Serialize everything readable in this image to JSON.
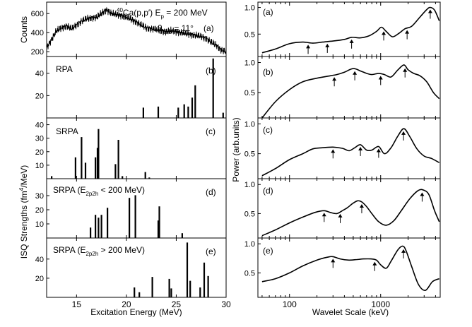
{
  "chart_data": [
    {
      "type": "line",
      "panel": "left-a",
      "ylabel": "Counts",
      "label": "(a)",
      "reaction_prefix": "40",
      "reaction": "Ca(p,p′) E",
      "energy_sub": "p",
      "energy_value": " = 200 MeV",
      "angle_symbol": "θ",
      "angle_sub": "Lab",
      "angle_value": " = 11°",
      "xlim": [
        12,
        30
      ],
      "ylim": [
        150,
        720
      ],
      "yticks": [
        200,
        400,
        600
      ],
      "x": [
        12,
        12.5,
        13,
        13.5,
        14,
        14.5,
        15,
        15.5,
        16,
        16.5,
        17,
        17.5,
        18,
        18.5,
        19,
        19.5,
        20,
        20.5,
        21,
        21.5,
        22,
        22.5,
        23,
        23.5,
        24,
        24.5,
        25,
        25.5,
        26,
        26.5,
        27,
        27.5,
        28,
        28.5,
        29,
        29.5,
        30
      ],
      "y": [
        240,
        330,
        420,
        450,
        470,
        440,
        480,
        520,
        545,
        555,
        560,
        600,
        640,
        600,
        590,
        580,
        560,
        540,
        510,
        480,
        450,
        440,
        430,
        420,
        410,
        420,
        410,
        400,
        390,
        380,
        370,
        360,
        340,
        300,
        270,
        220,
        200
      ]
    },
    {
      "type": "bar",
      "panel": "left-b",
      "label": "(b)",
      "title": "RPA",
      "xlim": [
        12,
        30
      ],
      "ylim": [
        0,
        55
      ],
      "yticks": [
        20,
        40
      ],
      "x": [
        21.7,
        23.2,
        25.2,
        25.8,
        26.2,
        26.6,
        26.9,
        28.7,
        29.7
      ],
      "values": [
        9.2,
        10.2,
        9.2,
        12.2,
        10.2,
        18.2,
        29.2,
        53.2,
        4.7
      ]
    },
    {
      "type": "bar",
      "panel": "left-c",
      "label": "(c)",
      "title": "SRPA",
      "xlim": [
        12,
        30
      ],
      "ylim": [
        0,
        45
      ],
      "yticks": [
        10,
        20,
        30,
        40
      ],
      "x": [
        12.5,
        14.9,
        15.5,
        15.9,
        16.9,
        17.1,
        17.2,
        18.9,
        19.2,
        19.6,
        21.9,
        22.3
      ],
      "values": [
        1.9,
        15.8,
        30.8,
        11.8,
        15.8,
        22.8,
        36.8,
        10.8,
        28.8,
        1.9,
        4.9,
        0.9
      ]
    },
    {
      "type": "bar",
      "panel": "left-d",
      "label": "(d)",
      "title": "SRPA (E",
      "title_sub": "2p2h",
      "title_rest": " < 200 MeV)",
      "xlim": [
        12,
        30
      ],
      "ylim": [
        0,
        42
      ],
      "yticks": [
        10,
        20,
        30
      ],
      "x": [
        16.4,
        16.9,
        17.2,
        17.5,
        18.1,
        20.3,
        20.9,
        23.2,
        23.3,
        25.6
      ],
      "values": [
        7.4,
        16.4,
        14.4,
        16.4,
        21.4,
        28.4,
        30.3,
        12.4,
        22.4,
        3.4
      ]
    },
    {
      "type": "bar",
      "panel": "left-e",
      "label": "(e)",
      "title": "SRPA (E",
      "title_sub": "2p2h",
      "title_rest": " > 200 MeV)",
      "xlim": [
        12,
        30
      ],
      "ylim": [
        0,
        62
      ],
      "yticks": [
        20,
        40
      ],
      "xlabel": "Excitation Energy (MeV)",
      "xticks": [
        15,
        20,
        25,
        30
      ],
      "x": [
        20.8,
        21.3,
        22.6,
        24.3,
        24.5,
        26.1,
        26.4,
        27.4,
        27.8,
        28.2
      ],
      "values": [
        10.3,
        5.3,
        21.3,
        19.3,
        9.3,
        57.3,
        17.3,
        10.3,
        36.3,
        22.3
      ]
    },
    {
      "type": "line",
      "panel": "right-a",
      "label": "(a)",
      "xscale": "log",
      "xlim": [
        45,
        4500
      ],
      "ylim": [
        0.08,
        1.1
      ],
      "yticks": [
        0.5,
        1.0
      ],
      "x": [
        50,
        70,
        100,
        140,
        180,
        230,
        300,
        400,
        480,
        600,
        750,
        900,
        1020,
        1150,
        1350,
        1600,
        1850,
        2200,
        2700,
        3200,
        3500,
        3900,
        4400
      ],
      "y": [
        0.15,
        0.22,
        0.32,
        0.35,
        0.33,
        0.35,
        0.37,
        0.4,
        0.44,
        0.43,
        0.47,
        0.55,
        0.63,
        0.55,
        0.45,
        0.52,
        0.6,
        0.65,
        0.82,
        0.96,
        1.0,
        0.95,
        0.75
      ],
      "arrows_x": [
        160,
        260,
        480,
        1080,
        1950,
        3500
      ]
    },
    {
      "type": "line",
      "panel": "right-b",
      "label": "(b)",
      "ylabel": "Power (arb.units)",
      "xscale": "log",
      "xlim": [
        45,
        4500
      ],
      "ylim": [
        0.08,
        1.1
      ],
      "yticks": [
        0.5,
        1.0
      ],
      "x": [
        50,
        70,
        100,
        140,
        200,
        280,
        330,
        400,
        500,
        600,
        700,
        800,
        950,
        1100,
        1300,
        1550,
        1800,
        2000,
        2300,
        2700,
        3200,
        3800,
        4400
      ],
      "y": [
        0.08,
        0.35,
        0.55,
        0.68,
        0.74,
        0.78,
        0.8,
        0.84,
        0.9,
        0.86,
        0.82,
        0.8,
        0.82,
        0.8,
        0.76,
        0.88,
        0.96,
        0.88,
        0.82,
        0.78,
        0.68,
        0.5,
        0.4
      ],
      "arrows_x": [
        310,
        520,
        1000,
        1850
      ]
    },
    {
      "type": "line",
      "panel": "right-c",
      "label": "(c)",
      "xscale": "log",
      "xlim": [
        45,
        4500
      ],
      "ylim": [
        0.08,
        1.1
      ],
      "yticks": [
        0.5,
        1.0
      ],
      "x": [
        50,
        70,
        100,
        140,
        180,
        230,
        300,
        380,
        450,
        520,
        600,
        700,
        800,
        950,
        1100,
        1300,
        1550,
        1800,
        2100,
        2500,
        3000,
        3600,
        4400
      ],
      "y": [
        0.13,
        0.25,
        0.4,
        0.5,
        0.58,
        0.6,
        0.61,
        0.59,
        0.55,
        0.6,
        0.65,
        0.56,
        0.56,
        0.62,
        0.5,
        0.6,
        0.8,
        0.92,
        0.78,
        0.58,
        0.46,
        0.42,
        0.35
      ],
      "arrows_x": [
        300,
        600,
        950,
        1780
      ]
    },
    {
      "type": "line",
      "panel": "right-d",
      "label": "(d)",
      "xscale": "log",
      "xlim": [
        45,
        4500
      ],
      "ylim": [
        0.08,
        1.1
      ],
      "yticks": [
        0.5,
        1.0
      ],
      "x": [
        50,
        70,
        100,
        140,
        190,
        240,
        280,
        330,
        380,
        430,
        500,
        560,
        620,
        700,
        800,
        950,
        1150,
        1400,
        1700,
        2100,
        2600,
        3000,
        3400,
        3900,
        4400
      ],
      "y": [
        0.12,
        0.22,
        0.34,
        0.44,
        0.52,
        0.55,
        0.52,
        0.5,
        0.55,
        0.6,
        0.68,
        0.72,
        0.7,
        0.62,
        0.5,
        0.36,
        0.3,
        0.38,
        0.56,
        0.76,
        0.9,
        0.9,
        0.82,
        0.55,
        0.36
      ],
      "arrows_x": [
        240,
        360,
        620,
        2850
      ]
    },
    {
      "type": "line",
      "panel": "right-e",
      "label": "(e)",
      "xscale": "log",
      "xlim": [
        45,
        4500
      ],
      "ylim": [
        0.08,
        1.1
      ],
      "yticks": [
        0.5,
        1.0
      ],
      "xlabel": "Wavelet  Scale (keV)",
      "xticks": [
        100,
        1000
      ],
      "x": [
        50,
        70,
        100,
        140,
        200,
        260,
        300,
        360,
        450,
        550,
        650,
        780,
        900,
        1000,
        1150,
        1300,
        1550,
        1750,
        1900,
        2200,
        2600,
        3100,
        3700,
        4400
      ],
      "y": [
        0.35,
        0.4,
        0.5,
        0.62,
        0.72,
        0.77,
        0.78,
        0.74,
        0.72,
        0.73,
        0.74,
        0.74,
        0.72,
        0.64,
        0.58,
        0.7,
        0.9,
        0.96,
        0.88,
        0.6,
        0.3,
        0.2,
        0.35,
        0.4
      ],
      "arrows_x": [
        300,
        860,
        1780
      ]
    }
  ],
  "shared": {
    "left_ylabel_pre": "ISQ Strengths (fm",
    "left_ylabel_sup": "4",
    "left_ylabel_post": "/MeV)"
  }
}
